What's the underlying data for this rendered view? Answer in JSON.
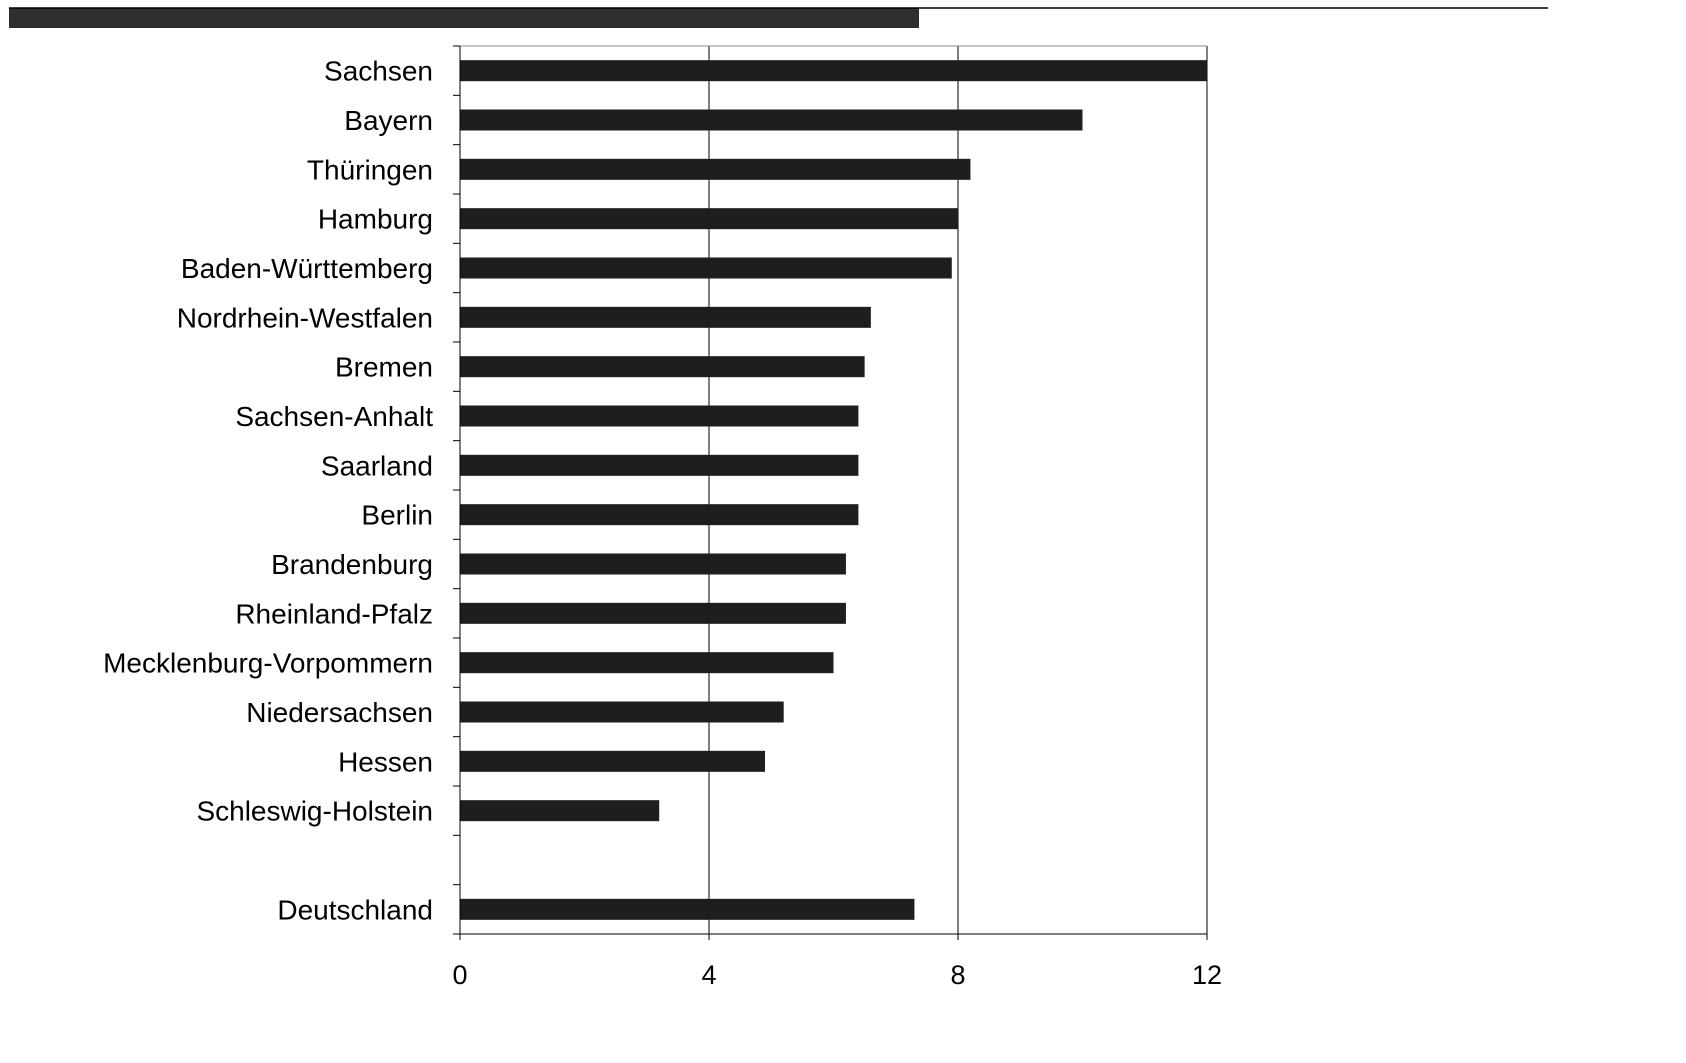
{
  "chart_data": {
    "type": "bar",
    "orientation": "horizontal",
    "categories": [
      "Sachsen",
      "Bayern",
      "Thüringen",
      "Hamburg",
      "Baden-Württemberg",
      "Nordrhein-Westfalen",
      "Bremen",
      "Sachsen-Anhalt",
      "Saarland",
      "Berlin",
      "Brandenburg",
      "Rheinland-Pfalz",
      "Mecklenburg-Vorpommern",
      "Niedersachsen",
      "Hessen",
      "Schleswig-Holstein",
      "",
      "Deutschland"
    ],
    "values": [
      12.0,
      10.0,
      8.2,
      8.0,
      7.9,
      6.6,
      6.5,
      6.4,
      6.4,
      6.4,
      6.2,
      6.2,
      6.0,
      5.2,
      4.9,
      3.2,
      null,
      7.3
    ],
    "xlim": [
      0,
      12
    ],
    "xticks": [
      0,
      4,
      8,
      12
    ],
    "xtick_labels": [
      "0",
      "4",
      "8",
      "12"
    ],
    "grid": "vertical",
    "legend": "none",
    "title": "",
    "xlabel": "",
    "ylabel": "",
    "colors": {
      "bar": "#1e1e1e",
      "axis": "#000000",
      "grid": "#000000",
      "header_bar": "#2f2f2f"
    }
  }
}
